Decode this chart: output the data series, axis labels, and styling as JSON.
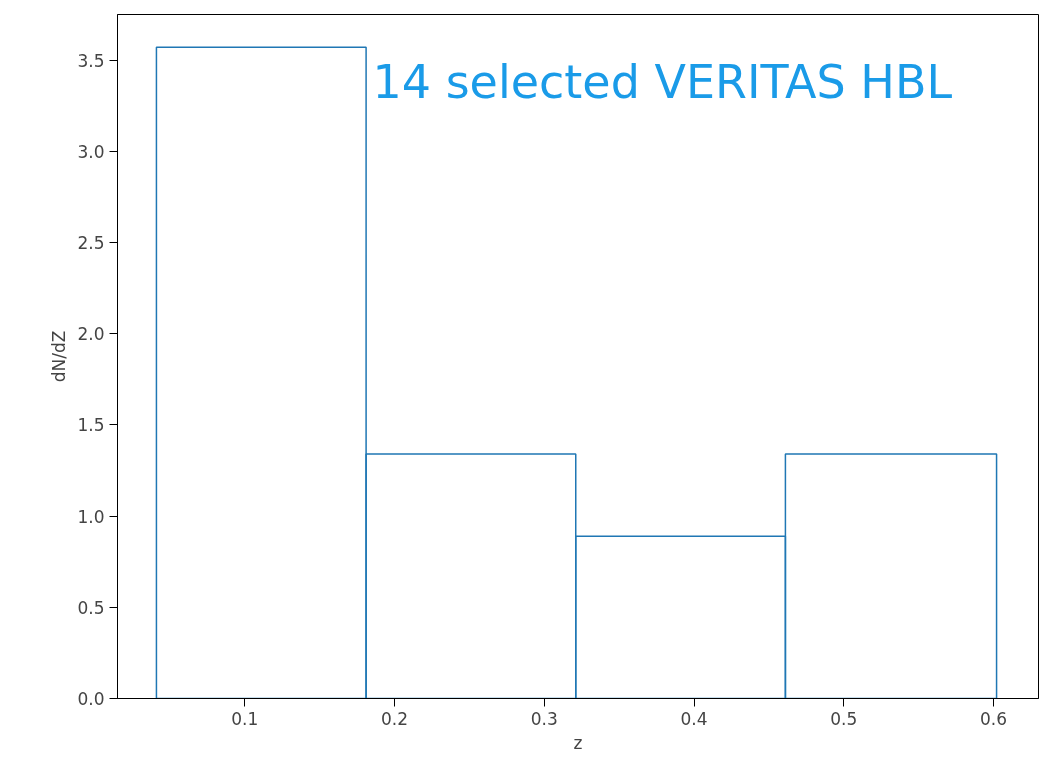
{
  "chart_data": {
    "type": "histogram",
    "xlabel": "z",
    "ylabel": "dN/dZ",
    "bins": [
      0.041,
      0.181,
      0.321,
      0.461,
      0.602
    ],
    "values": [
      3.57,
      1.34,
      0.89,
      1.34
    ],
    "color": "#1f77b4",
    "xlim": [
      0.015,
      0.63
    ],
    "xticks": [
      0.1,
      0.2,
      0.3,
      0.4,
      0.5,
      0.6
    ],
    "ylim": [
      0,
      3.75
    ],
    "yticks": [
      {
        "value": 0,
        "label": "0.0"
      },
      0.5,
      {
        "value": 1,
        "label": "1.0"
      },
      1.5,
      {
        "value": 2,
        "label": "2.0"
      },
      2.5,
      {
        "value": 3,
        "label": "3.0"
      },
      3.5
    ],
    "grid": false,
    "annotations": [
      "14 selected VERITAS HBL"
    ]
  }
}
